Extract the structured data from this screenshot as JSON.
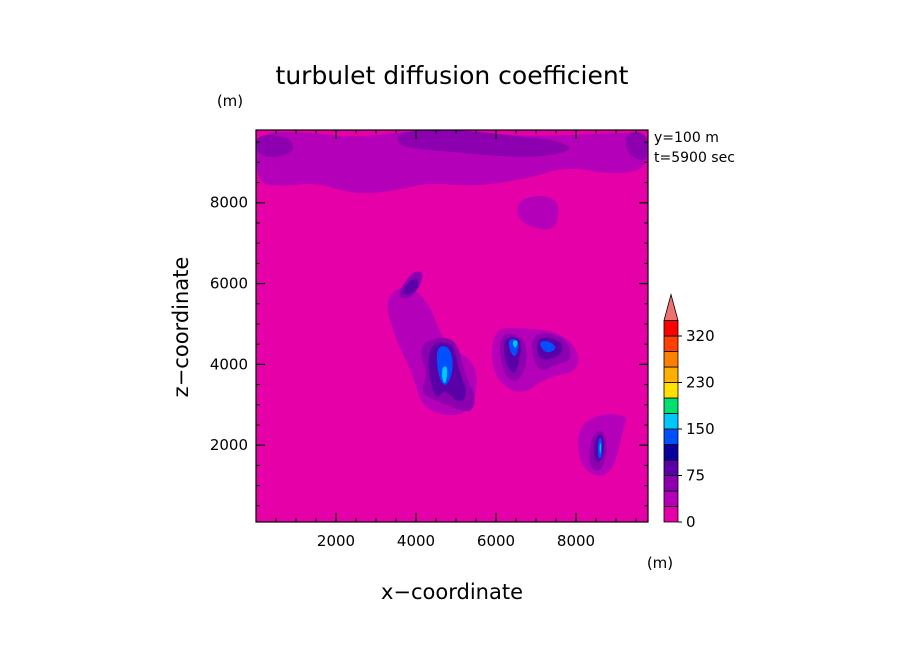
{
  "chart_data": {
    "type": "heatmap",
    "title": "turbulet diffusion coefficient",
    "xlabel": "x−coordinate",
    "ylabel": "z−coordinate",
    "x_unit": "(m)",
    "y_unit": "(m)",
    "annotations": [
      "y=100 m",
      "t=5900 sec"
    ],
    "xlim": [
      0,
      9800
    ],
    "ylim": [
      100,
      9800
    ],
    "x_ticks": [
      2000,
      4000,
      6000,
      8000
    ],
    "y_ticks": [
      2000,
      4000,
      6000,
      8000
    ],
    "colorbar": {
      "labels": [
        "0",
        "75",
        "150",
        "230",
        "320"
      ],
      "label_levels": [
        0,
        3,
        6,
        9,
        12
      ],
      "levels": [
        0,
        25,
        50,
        75,
        100,
        125,
        150,
        175,
        200,
        230,
        260,
        290,
        320
      ],
      "colors": [
        "#e600a8",
        "#b400b8",
        "#8c00b0",
        "#5a00a8",
        "#0a00a0",
        "#0050ff",
        "#00c8ff",
        "#00e070",
        "#ffe000",
        "#ffb000",
        "#ff8000",
        "#ff4000",
        "#ff0000"
      ],
      "extend_color": "#f07070"
    },
    "background_level": 0,
    "features": [
      {
        "level": 1,
        "points": [
          [
            0,
            9750
          ],
          [
            1200,
            9750
          ],
          [
            2500,
            9600
          ],
          [
            4000,
            9800
          ],
          [
            5500,
            9700
          ],
          [
            7200,
            9650
          ],
          [
            8500,
            9700
          ],
          [
            9800,
            9750
          ],
          [
            9800,
            8800
          ],
          [
            8800,
            8700
          ],
          [
            7800,
            8900
          ],
          [
            6800,
            8600
          ],
          [
            5500,
            8400
          ],
          [
            4300,
            8500
          ],
          [
            3500,
            8300
          ],
          [
            2500,
            8200
          ],
          [
            1500,
            8500
          ],
          [
            600,
            8400
          ],
          [
            0,
            8500
          ]
        ]
      },
      {
        "level": 1,
        "points": [
          [
            6600,
            8100
          ],
          [
            7200,
            8200
          ],
          [
            7600,
            8000
          ],
          [
            7500,
            7300
          ],
          [
            6800,
            7400
          ],
          [
            6500,
            7700
          ]
        ]
      },
      {
        "level": 2,
        "points": [
          [
            0,
            9700
          ],
          [
            800,
            9650
          ],
          [
            1000,
            9300
          ],
          [
            500,
            9100
          ],
          [
            0,
            9200
          ]
        ]
      },
      {
        "level": 2,
        "points": [
          [
            3600,
            9800
          ],
          [
            5200,
            9800
          ],
          [
            6500,
            9650
          ],
          [
            7500,
            9550
          ],
          [
            8000,
            9300
          ],
          [
            6900,
            9100
          ],
          [
            5500,
            9200
          ],
          [
            4400,
            9300
          ],
          [
            3500,
            9400
          ]
        ]
      },
      {
        "level": 2,
        "points": [
          [
            9200,
            9750
          ],
          [
            9800,
            9750
          ],
          [
            9800,
            9000
          ],
          [
            9300,
            9150
          ]
        ]
      },
      {
        "level": 1,
        "points": [
          [
            3200,
            5600
          ],
          [
            3700,
            6000
          ],
          [
            4300,
            5600
          ],
          [
            4700,
            4500
          ],
          [
            5600,
            4000
          ],
          [
            5400,
            2700
          ],
          [
            4200,
            2800
          ],
          [
            3900,
            3800
          ],
          [
            3500,
            4600
          ]
        ]
      },
      {
        "level": 1,
        "points": [
          [
            5900,
            4900
          ],
          [
            6700,
            4900
          ],
          [
            7600,
            4800
          ],
          [
            8100,
            4300
          ],
          [
            8000,
            3800
          ],
          [
            7300,
            3700
          ],
          [
            6600,
            3200
          ],
          [
            5900,
            3700
          ]
        ]
      },
      {
        "level": 1,
        "points": [
          [
            8200,
            2600
          ],
          [
            8800,
            2800
          ],
          [
            9300,
            2700
          ],
          [
            9200,
            2500
          ],
          [
            8900,
            1200
          ],
          [
            8200,
            1300
          ],
          [
            8000,
            2100
          ]
        ]
      },
      {
        "level": 2,
        "points": [
          [
            3500,
            5700
          ],
          [
            3900,
            6300
          ],
          [
            4200,
            6300
          ],
          [
            4100,
            5900
          ],
          [
            3800,
            5600
          ]
        ]
      },
      {
        "level": 2,
        "points": [
          [
            4200,
            4600
          ],
          [
            5000,
            4700
          ],
          [
            5200,
            3800
          ],
          [
            5500,
            3200
          ],
          [
            5400,
            2800
          ],
          [
            5000,
            2900
          ],
          [
            4500,
            3100
          ],
          [
            4100,
            3300
          ],
          [
            4300,
            3800
          ],
          [
            4100,
            4200
          ]
        ]
      },
      {
        "level": 2,
        "points": [
          [
            6100,
            4800
          ],
          [
            6700,
            4700
          ],
          [
            6800,
            4100
          ],
          [
            6600,
            3600
          ],
          [
            6300,
            3600
          ],
          [
            6100,
            4100
          ]
        ]
      },
      {
        "level": 2,
        "points": [
          [
            6900,
            4700
          ],
          [
            7300,
            4800
          ],
          [
            7800,
            4600
          ],
          [
            7900,
            4100
          ],
          [
            7500,
            4000
          ],
          [
            7100,
            3800
          ],
          [
            6900,
            4200
          ]
        ]
      },
      {
        "level": 2,
        "points": [
          [
            8400,
            2300
          ],
          [
            8700,
            2400
          ],
          [
            8800,
            1800
          ],
          [
            8600,
            1300
          ],
          [
            8300,
            1500
          ]
        ]
      },
      {
        "level": 3,
        "points": [
          [
            3600,
            5800
          ],
          [
            4000,
            6200
          ],
          [
            4100,
            5900
          ],
          [
            3800,
            5700
          ]
        ]
      },
      {
        "level": 3,
        "points": [
          [
            4350,
            4550
          ],
          [
            4950,
            4550
          ],
          [
            5050,
            3900
          ],
          [
            5300,
            3300
          ],
          [
            5100,
            3000
          ],
          [
            4700,
            3400
          ],
          [
            4500,
            3100
          ],
          [
            4300,
            3800
          ]
        ]
      },
      {
        "level": 3,
        "points": [
          [
            6200,
            4700
          ],
          [
            6650,
            4650
          ],
          [
            6600,
            4100
          ],
          [
            6450,
            3700
          ],
          [
            6200,
            4100
          ]
        ]
      },
      {
        "level": 3,
        "points": [
          [
            7000,
            4600
          ],
          [
            7300,
            4700
          ],
          [
            7700,
            4500
          ],
          [
            7600,
            4200
          ],
          [
            7200,
            4100
          ],
          [
            7050,
            4200
          ]
        ]
      },
      {
        "level": 3,
        "points": [
          [
            8450,
            2200
          ],
          [
            8700,
            2300
          ],
          [
            8700,
            1700
          ],
          [
            8450,
            1500
          ]
        ]
      },
      {
        "level": 5,
        "points": [
          [
            4500,
            4450
          ],
          [
            4850,
            4450
          ],
          [
            4950,
            3900
          ],
          [
            4750,
            3400
          ],
          [
            4550,
            3700
          ]
        ]
      },
      {
        "level": 5,
        "points": [
          [
            6300,
            4650
          ],
          [
            6600,
            4600
          ],
          [
            6500,
            4150
          ],
          [
            6350,
            4300
          ]
        ]
      },
      {
        "level": 5,
        "points": [
          [
            7050,
            4550
          ],
          [
            7300,
            4600
          ],
          [
            7550,
            4400
          ],
          [
            7250,
            4250
          ]
        ]
      },
      {
        "level": 5,
        "points": [
          [
            8550,
            2150
          ],
          [
            8650,
            2200
          ],
          [
            8650,
            1700
          ],
          [
            8550,
            1650
          ]
        ]
      },
      {
        "level": 6,
        "points": [
          [
            4650,
            3950
          ],
          [
            4800,
            3950
          ],
          [
            4750,
            3500
          ],
          [
            4650,
            3600
          ]
        ]
      },
      {
        "level": 6,
        "points": [
          [
            6420,
            4600
          ],
          [
            6560,
            4580
          ],
          [
            6500,
            4400
          ],
          [
            6430,
            4450
          ]
        ]
      },
      {
        "level": 6,
        "points": [
          [
            8590,
            2050
          ],
          [
            8630,
            2050
          ],
          [
            8620,
            1800
          ],
          [
            8590,
            1800
          ]
        ]
      }
    ]
  }
}
